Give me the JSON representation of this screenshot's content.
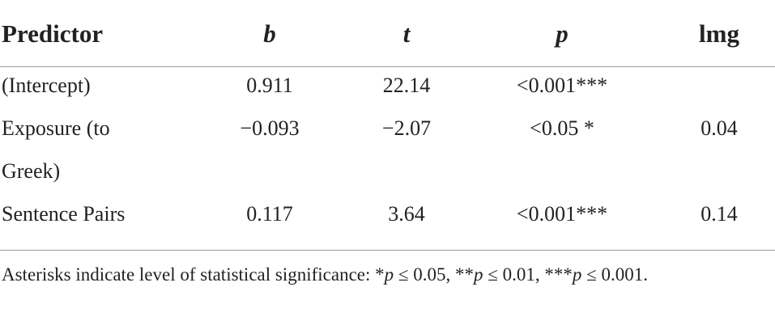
{
  "table": {
    "header": [
      "Predictor",
      "b",
      "t",
      "p",
      "lmg"
    ],
    "rows": [
      [
        "(Intercept)",
        "0.911",
        "22.14",
        "<0.001***",
        null
      ],
      [
        "Exposure (to Greek)",
        "−0.093",
        "−2.07",
        "<0.05 *",
        "0.04"
      ],
      [
        "Sentence Pairs",
        "0.117",
        "3.64",
        "<0.001***",
        "0.14"
      ]
    ]
  },
  "note": [
    "Asterisks indicate level of statistical significance: *",
    "p",
    " ≤ 0.05, **",
    "p",
    " ≤ 0.01, ***",
    "p",
    " ≤ 0.001."
  ]
}
